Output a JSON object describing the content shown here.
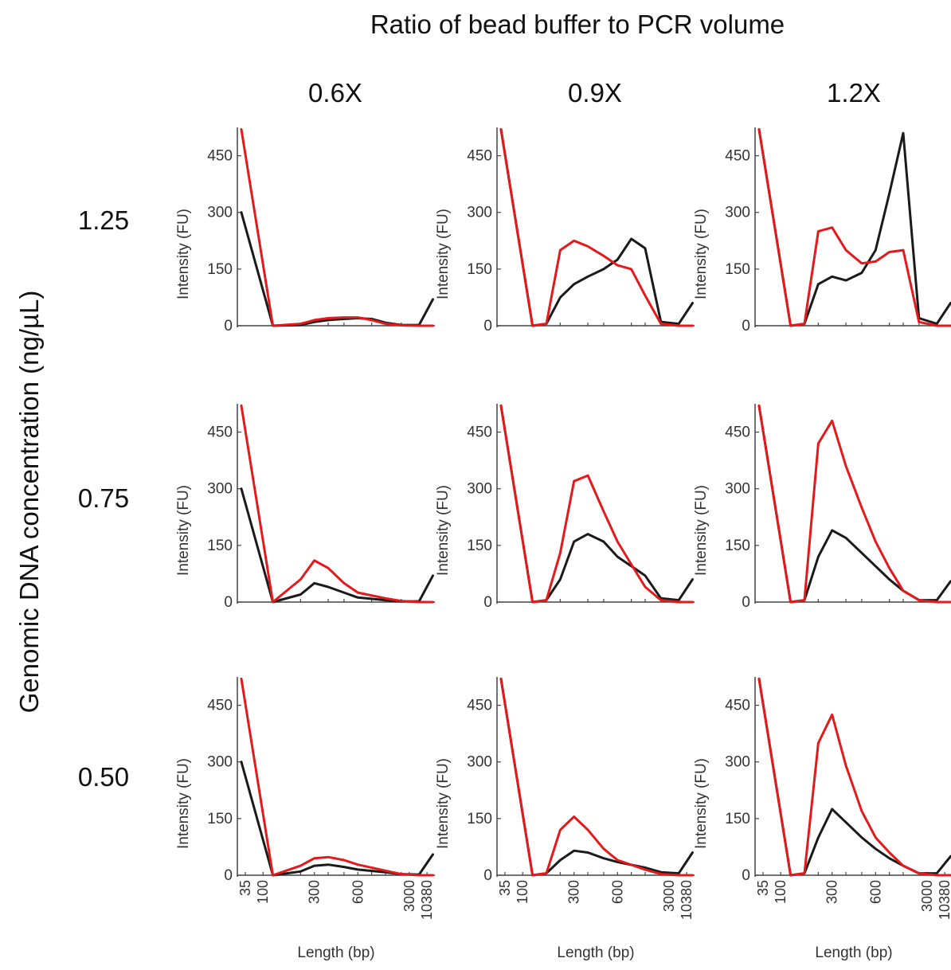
{
  "figure": {
    "title": "Ratio of bead buffer to PCR volume",
    "row_axis_title": "Genomic DNA concentration (ng/µL)",
    "column_labels": [
      "0.6X",
      "0.9X",
      "1.2X"
    ],
    "row_labels": [
      "1.25",
      "0.75",
      "0.50"
    ],
    "colors": {
      "black_trace": "#1a1a1a",
      "red_trace": "#e4191c",
      "axis": "#444444"
    }
  },
  "chart_data": {
    "type": "line",
    "layout": "3x3 small multiples",
    "xlabel": "Length (bp)",
    "ylabel": "Intensity (FU)",
    "x_ticks": [
      "35",
      "100",
      "300",
      "600",
      "3000",
      "10380"
    ],
    "y_ticks": [
      "0",
      "150",
      "300",
      "450"
    ],
    "ylim": [
      0,
      525
    ],
    "series_colors": [
      "black",
      "red"
    ],
    "panels": [
      {
        "row": "1.25",
        "column": "0.6X",
        "x": [
          35,
          100,
          200,
          300,
          400,
          500,
          600,
          700,
          800,
          1000,
          3000,
          10380
        ],
        "black": [
          300,
          0,
          2,
          10,
          15,
          18,
          20,
          18,
          8,
          2,
          2,
          70
        ],
        "red": [
          520,
          0,
          5,
          15,
          20,
          22,
          22,
          15,
          5,
          1,
          0,
          0
        ]
      },
      {
        "row": "1.25",
        "column": "0.9X",
        "x": [
          35,
          100,
          150,
          200,
          300,
          400,
          500,
          600,
          700,
          800,
          1000,
          3000,
          10380
        ],
        "black": [
          520,
          0,
          5,
          75,
          110,
          130,
          150,
          175,
          230,
          205,
          10,
          5,
          60
        ],
        "red": [
          520,
          0,
          5,
          200,
          225,
          210,
          185,
          160,
          150,
          80,
          5,
          0,
          0
        ]
      },
      {
        "row": "1.25",
        "column": "1.2X",
        "x": [
          35,
          100,
          150,
          200,
          300,
          400,
          500,
          600,
          700,
          800,
          1000,
          3000,
          10380
        ],
        "black": [
          520,
          0,
          5,
          110,
          130,
          120,
          140,
          200,
          350,
          510,
          20,
          5,
          60
        ],
        "red": [
          520,
          0,
          5,
          250,
          260,
          200,
          165,
          170,
          195,
          200,
          10,
          0,
          0
        ]
      },
      {
        "row": "0.75",
        "column": "0.6X",
        "x": [
          35,
          100,
          200,
          300,
          400,
          500,
          600,
          800,
          1000,
          3000,
          10380
        ],
        "black": [
          300,
          0,
          20,
          50,
          40,
          25,
          12,
          5,
          2,
          2,
          70
        ],
        "red": [
          520,
          0,
          60,
          110,
          90,
          50,
          25,
          10,
          3,
          0,
          0
        ]
      },
      {
        "row": "0.75",
        "column": "0.9X",
        "x": [
          35,
          100,
          150,
          200,
          300,
          400,
          500,
          600,
          700,
          800,
          1000,
          3000,
          10380
        ],
        "black": [
          520,
          0,
          5,
          60,
          160,
          180,
          160,
          120,
          95,
          70,
          10,
          5,
          60
        ],
        "red": [
          520,
          0,
          5,
          130,
          320,
          335,
          240,
          160,
          100,
          40,
          5,
          0,
          0
        ]
      },
      {
        "row": "0.75",
        "column": "1.2X",
        "x": [
          35,
          100,
          150,
          200,
          300,
          400,
          500,
          600,
          700,
          800,
          1000,
          3000,
          10380
        ],
        "black": [
          520,
          0,
          5,
          120,
          190,
          170,
          130,
          95,
          60,
          30,
          5,
          5,
          55
        ],
        "red": [
          520,
          0,
          5,
          420,
          480,
          360,
          250,
          160,
          90,
          30,
          5,
          0,
          0
        ]
      },
      {
        "row": "0.50",
        "column": "0.6X",
        "x": [
          35,
          100,
          200,
          300,
          400,
          500,
          600,
          800,
          1000,
          3000,
          10380
        ],
        "black": [
          300,
          0,
          10,
          25,
          28,
          22,
          15,
          8,
          3,
          2,
          55
        ],
        "red": [
          520,
          0,
          25,
          45,
          48,
          40,
          28,
          12,
          3,
          0,
          0
        ]
      },
      {
        "row": "0.50",
        "column": "0.9X",
        "x": [
          35,
          100,
          150,
          200,
          300,
          400,
          500,
          600,
          800,
          1000,
          3000,
          10380
        ],
        "black": [
          520,
          0,
          5,
          40,
          65,
          60,
          45,
          35,
          20,
          8,
          5,
          60
        ],
        "red": [
          520,
          0,
          5,
          120,
          155,
          120,
          70,
          40,
          15,
          3,
          0,
          0
        ]
      },
      {
        "row": "0.50",
        "column": "1.2X",
        "x": [
          35,
          100,
          150,
          200,
          300,
          400,
          500,
          600,
          700,
          800,
          1000,
          3000,
          10380
        ],
        "black": [
          520,
          0,
          5,
          100,
          175,
          140,
          100,
          70,
          45,
          25,
          5,
          5,
          50
        ],
        "red": [
          520,
          0,
          5,
          350,
          425,
          290,
          170,
          100,
          60,
          25,
          5,
          0,
          0
        ]
      }
    ]
  }
}
